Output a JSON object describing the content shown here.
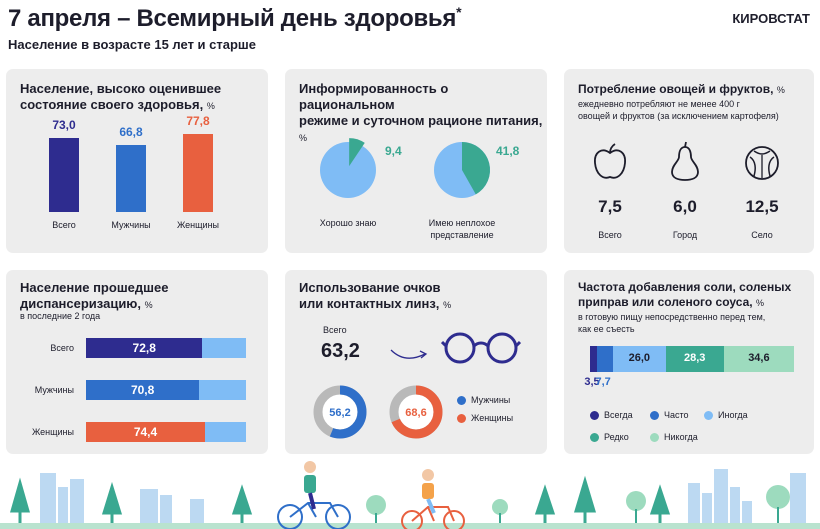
{
  "header": {
    "title": "7 апреля – Всемирный день здоровья",
    "title_mark": "*",
    "subtitle": "Население в возрасте 15 лет и старше",
    "brand": "КИРОВСТАТ"
  },
  "colors": {
    "navy": "#2e2c8f",
    "blue": "#2f6fc9",
    "light_blue": "#7fbcf5",
    "orange": "#e8603f",
    "teal": "#3aa891",
    "mint": "#9ddbbe",
    "card_bg": "#ededed",
    "donut_grey": "#b9b9b9"
  },
  "cards": {
    "health": {
      "title_line1": "Население, высоко оценившее",
      "title_line2": "состояние своего здоровья,",
      "unit": "%"
    },
    "awareness": {
      "title_line1": "Информированность о рациональном",
      "title_line2": "режиме и суточном рационе питания,",
      "unit": "%"
    },
    "vegetables": {
      "title": "Потребление овощей и фруктов,",
      "unit": "%",
      "note_line1": "ежедневно потребляют не менее 400 г",
      "note_line2": "овощей и фруктов (за исключением  картофеля)",
      "icons": [
        "apple-icon",
        "pear-icon",
        "cabbage-icon"
      ]
    },
    "checkup": {
      "title_line1": "Население прошедшее",
      "title_line2": "диспансеризацию,",
      "unit": "%",
      "note": "в последние  2 года"
    },
    "glasses": {
      "title_line1": "Использование очков",
      "title_line2": "или контактных линз,",
      "unit": "%",
      "total_label": "Всего",
      "total_value": "63,2",
      "legend": [
        "Мужчины",
        "Женщины"
      ]
    },
    "salt": {
      "title_line1": "Частота добавления соли, соленых",
      "title_line2": "приправ или соленого соуса,",
      "unit": "%",
      "note_line1": "в готовую пищу  непосредственно перед тем,",
      "note_line2": "как ее съесть",
      "legend": [
        "Всегда",
        "Часто",
        "Иногда",
        "Редко",
        "Никогда"
      ]
    }
  },
  "chart_data": [
    {
      "type": "bar",
      "title": "Население, высоко оценившее состояние своего здоровья, %",
      "categories": [
        "Всего",
        "Мужчины",
        "Женщины"
      ],
      "values": [
        73.0,
        66.8,
        77.8
      ],
      "labels": [
        "73,0",
        "66,8",
        "77,8"
      ],
      "colors": [
        "#2e2c8f",
        "#2f6fc9",
        "#e8603f"
      ]
    },
    {
      "type": "pie",
      "title": "Информированность о рациональном режиме и суточном рационе питания, %",
      "categories": [
        "Хорошо знаю",
        "Имею неплохое представление"
      ],
      "values": [
        9.4,
        41.8
      ],
      "labels": [
        "9,4",
        "41,8"
      ],
      "accent": "#3aa891",
      "base": "#7fbcf5"
    },
    {
      "type": "table",
      "title": "Потребление овощей и фруктов, %",
      "categories": [
        "Всего",
        "Город",
        "Село"
      ],
      "values": [
        7.5,
        6.0,
        12.5
      ],
      "labels": [
        "7,5",
        "6,0",
        "12,5"
      ]
    },
    {
      "type": "bar",
      "orientation": "horizontal",
      "title": "Население прошедшее диспансеризацию, %",
      "categories": [
        "Всего",
        "Мужчины",
        "Женщины"
      ],
      "values": [
        72.8,
        70.8,
        74.4
      ],
      "labels": [
        "72,8",
        "70,8",
        "74,4"
      ],
      "xlim": [
        0,
        100
      ],
      "colors": [
        "#2e2c8f",
        "#2f6fc9",
        "#e8603f"
      ],
      "remainder_color": "#7fbcf5"
    },
    {
      "type": "pie",
      "variant": "donut",
      "title": "Использование очков или контактных линз, %",
      "categories": [
        "Мужчины",
        "Женщины"
      ],
      "values": [
        56.2,
        68.6
      ],
      "labels": [
        "56,2",
        "68,6"
      ],
      "colors": [
        "#2f6fc9",
        "#e8603f"
      ]
    },
    {
      "type": "bar",
      "orientation": "stacked-horizontal",
      "title": "Частота добавления соли, соленых приправ или соленого соуса, %",
      "categories": [
        "Всегда",
        "Часто",
        "Иногда",
        "Редко",
        "Никогда"
      ],
      "values": [
        3.5,
        7.7,
        26.0,
        28.3,
        34.6
      ],
      "labels": [
        "3,5",
        "7,7",
        "26,0",
        "28,3",
        "34,6"
      ],
      "colors": [
        "#2e2c8f",
        "#2f6fc9",
        "#7fbcf5",
        "#3aa891",
        "#9ddbbe"
      ]
    }
  ]
}
